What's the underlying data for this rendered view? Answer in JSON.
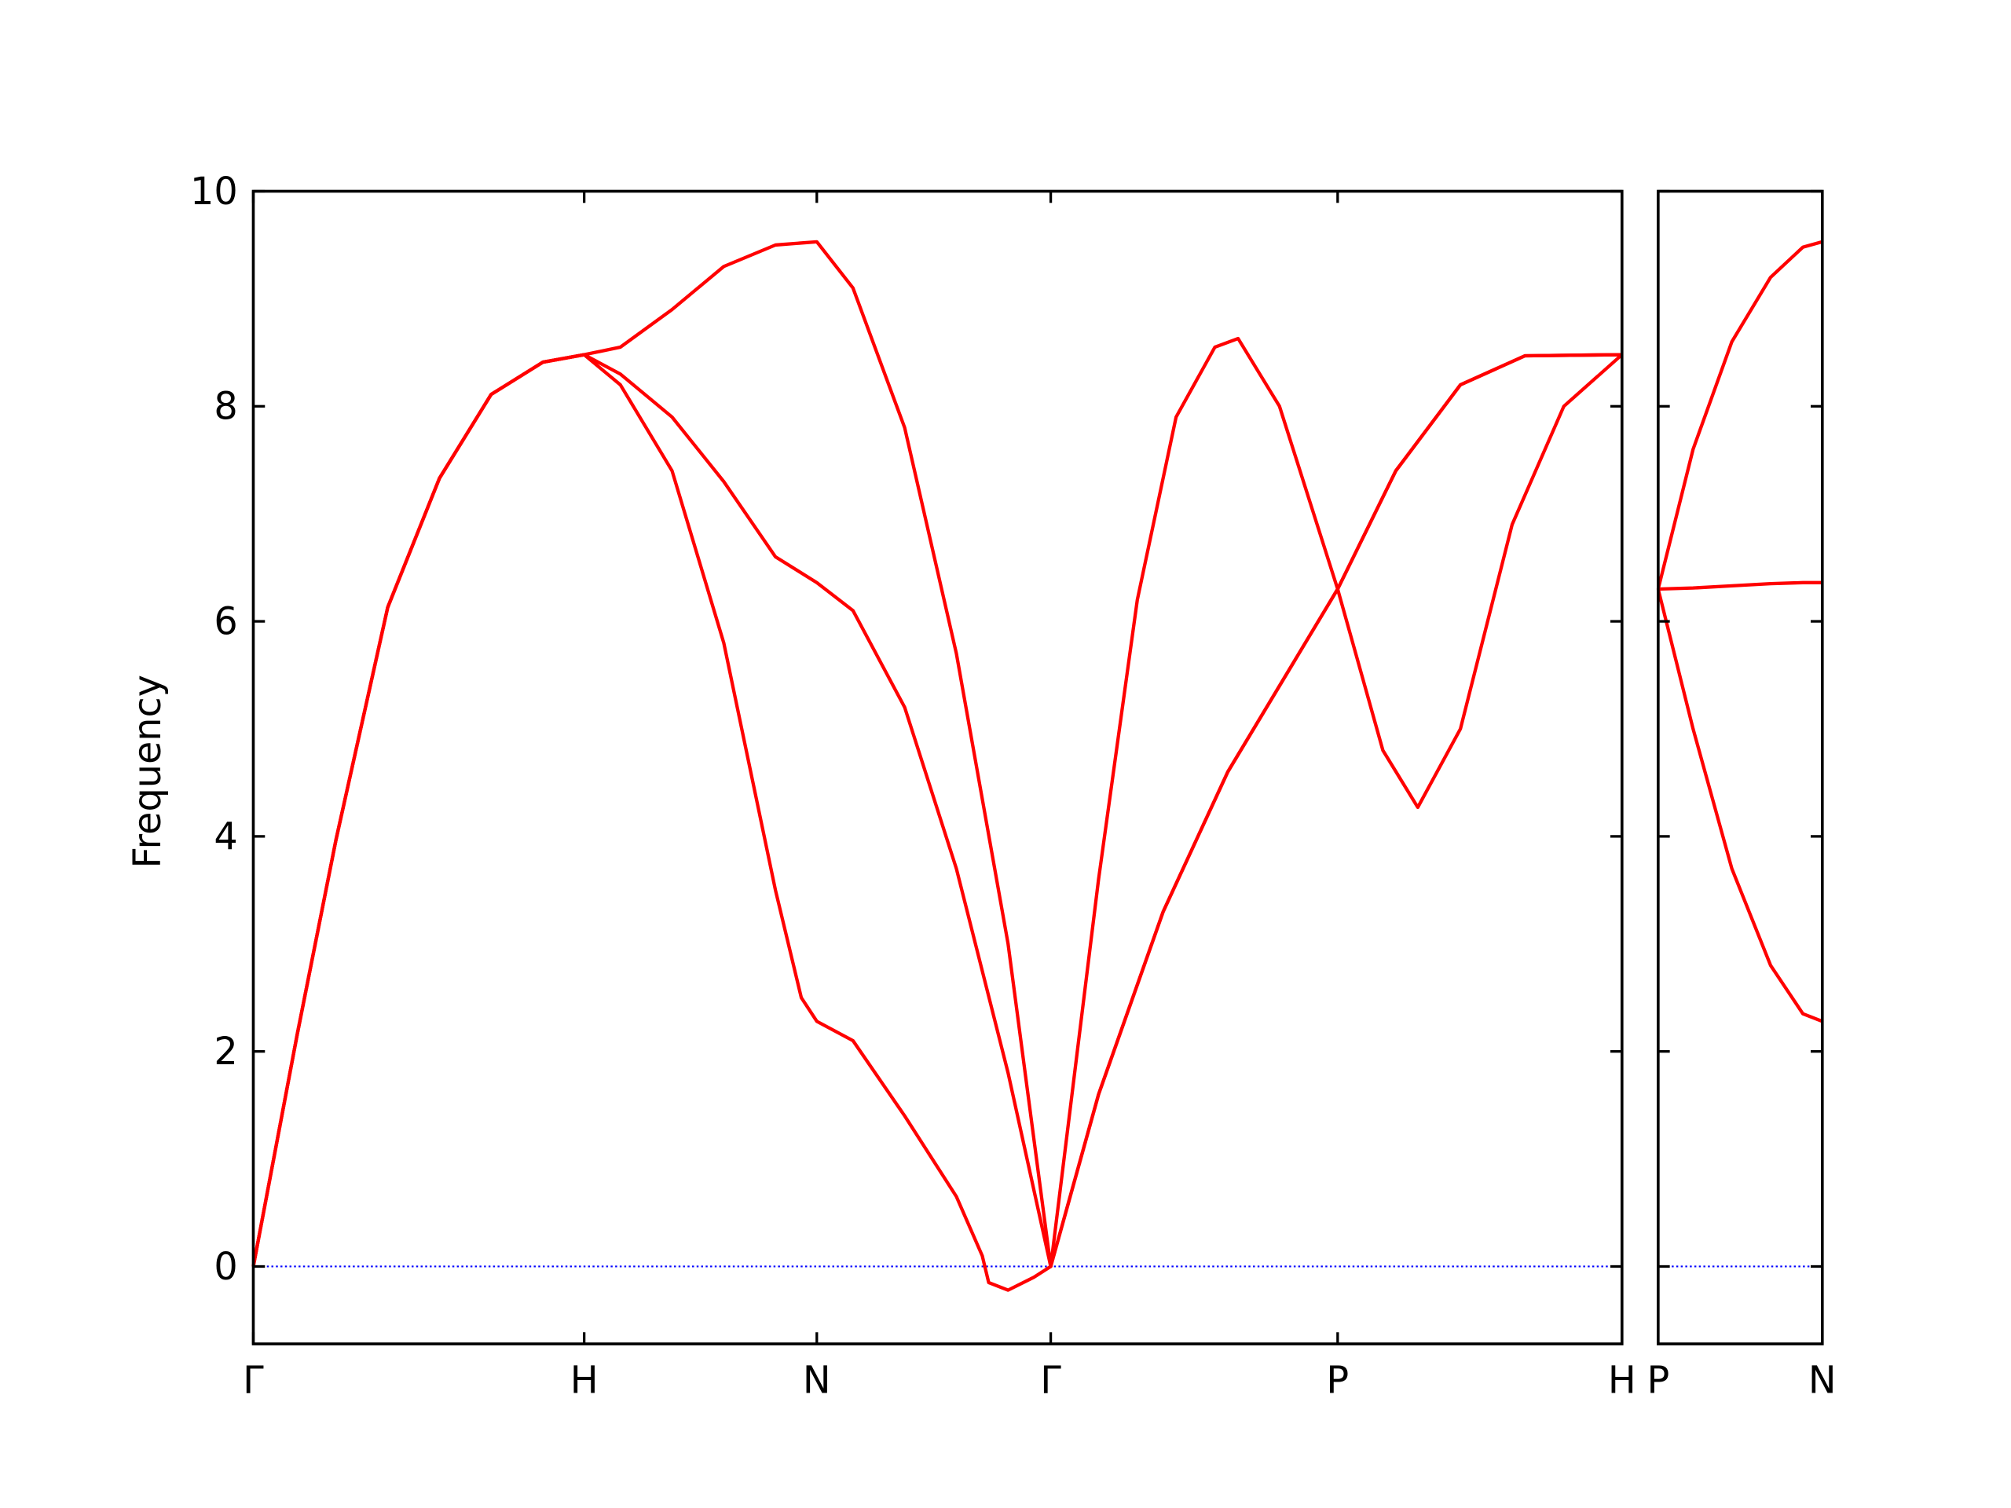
{
  "chart_data": [
    {
      "type": "line",
      "ylabel": "Frequency",
      "xlim": [
        0,
        1.059
      ],
      "ylim": [
        -0.72,
        10
      ],
      "xticks": [
        {
          "value": 0,
          "label": "Γ"
        },
        {
          "value": 0.256,
          "label": "H"
        },
        {
          "value": 0.436,
          "label": "N"
        },
        {
          "value": 0.617,
          "label": "Γ"
        },
        {
          "value": 0.839,
          "label": "P"
        },
        {
          "value": 1.059,
          "label": "H"
        }
      ],
      "yticks": [
        0,
        2,
        4,
        6,
        8,
        10
      ],
      "hline": {
        "value": 0,
        "color": "#0000ff"
      },
      "series": [
        {
          "color": "#ff0000",
          "x": [
            0,
            0.034,
            0.064,
            0.104,
            0.144,
            0.184,
            0.224,
            0.256,
            0.284,
            0.324,
            0.364,
            0.404,
            0.424,
            0.436,
            0.464,
            0.504,
            0.544,
            0.564,
            0.569,
            0.584,
            0.604,
            0.617,
            0.654,
            0.704,
            0.754,
            0.804,
            0.839,
            0.884,
            0.934,
            0.984,
            1.059
          ],
          "values": [
            0,
            2.16,
            3.97,
            6.13,
            7.33,
            8.11,
            8.41,
            8.48,
            8.2,
            7.4,
            5.8,
            3.5,
            2.5,
            2.28,
            2.1,
            1.4,
            0.65,
            0.1,
            -0.15,
            -0.22,
            -0.1,
            0,
            1.6,
            3.3,
            4.6,
            5.6,
            6.3,
            7.4,
            8.2,
            8.47,
            8.48
          ]
        },
        {
          "color": "#ff0000",
          "x": [
            0,
            0.034,
            0.064,
            0.104,
            0.144,
            0.184,
            0.224,
            0.256,
            0.284,
            0.324,
            0.364,
            0.404,
            0.436,
            0.464,
            0.504,
            0.544,
            0.584,
            0.617,
            0.654,
            0.704,
            0.754,
            0.804,
            0.839,
            0.874,
            0.901,
            0.934,
            0.974,
            1.014,
            1.059
          ],
          "values": [
            0,
            2.16,
            3.97,
            6.13,
            7.33,
            8.11,
            8.41,
            8.48,
            8.3,
            7.9,
            7.3,
            6.6,
            6.36,
            6.1,
            5.2,
            3.7,
            1.8,
            0,
            1.6,
            3.3,
            4.6,
            5.6,
            6.3,
            4.8,
            4.27,
            5.0,
            6.9,
            8.0,
            8.48
          ]
        },
        {
          "color": "#ff0000",
          "x": [
            0,
            0.034,
            0.064,
            0.104,
            0.144,
            0.184,
            0.224,
            0.256,
            0.284,
            0.324,
            0.364,
            0.404,
            0.436,
            0.464,
            0.504,
            0.544,
            0.584,
            0.617,
            0.654,
            0.684,
            0.714,
            0.744,
            0.762,
            0.794,
            0.839,
            0.884,
            0.934,
            0.984,
            1.059
          ],
          "values": [
            0,
            2.16,
            3.97,
            6.13,
            7.33,
            8.11,
            8.41,
            8.48,
            8.55,
            8.9,
            9.3,
            9.5,
            9.53,
            9.1,
            7.8,
            5.7,
            3.0,
            0,
            3.6,
            6.2,
            7.9,
            8.55,
            8.63,
            8.0,
            6.3,
            7.4,
            8.2,
            8.47,
            8.48
          ]
        }
      ]
    },
    {
      "type": "line",
      "xlim": [
        0,
        0.127
      ],
      "ylim": [
        -0.72,
        10
      ],
      "xticks": [
        {
          "value": 0,
          "label": "P"
        },
        {
          "value": 0.127,
          "label": "N"
        }
      ],
      "yticks": [
        0,
        2,
        4,
        6,
        8,
        10
      ],
      "hline": {
        "value": 0,
        "color": "#0000ff"
      },
      "series": [
        {
          "color": "#ff0000",
          "x": [
            0,
            0.027,
            0.057,
            0.087,
            0.112,
            0.127
          ],
          "values": [
            6.3,
            5.0,
            3.7,
            2.8,
            2.35,
            2.28
          ]
        },
        {
          "color": "#ff0000",
          "x": [
            0,
            0.027,
            0.057,
            0.087,
            0.112,
            0.127
          ],
          "values": [
            6.3,
            6.31,
            6.33,
            6.35,
            6.36,
            6.36
          ]
        },
        {
          "color": "#ff0000",
          "x": [
            0,
            0.027,
            0.057,
            0.087,
            0.112,
            0.127
          ],
          "values": [
            6.3,
            7.6,
            8.6,
            9.2,
            9.48,
            9.53
          ]
        }
      ]
    }
  ]
}
